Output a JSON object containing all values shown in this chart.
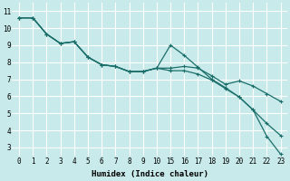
{
  "xlabel": "Humidex (Indice chaleur)",
  "bg_color": "#c8eaea",
  "grid_color": "#ffffff",
  "line_color": "#1a6e6a",
  "line1_y": [
    10.6,
    10.6,
    9.65,
    9.1,
    9.2,
    8.3,
    7.85,
    7.75,
    7.45,
    7.45,
    7.65,
    7.65,
    7.75,
    7.65,
    7.2,
    6.7,
    6.9,
    6.6,
    6.15,
    5.7
  ],
  "line2_y": [
    10.6,
    10.6,
    9.65,
    9.1,
    9.2,
    8.3,
    7.85,
    7.75,
    7.45,
    7.45,
    7.65,
    9.0,
    8.4,
    7.7,
    7.0,
    6.5,
    5.95,
    5.2,
    4.4,
    3.7
  ],
  "line3_y": [
    10.6,
    10.6,
    9.65,
    9.1,
    9.2,
    8.3,
    7.85,
    7.75,
    7.45,
    7.45,
    7.65,
    7.5,
    7.5,
    7.3,
    6.95,
    6.45,
    5.95,
    5.2,
    3.65,
    2.6
  ],
  "xtick_labels": [
    "0",
    "1",
    "2",
    "3",
    "4",
    "5",
    "6",
    "7",
    "8",
    "9",
    "10",
    "15",
    "16",
    "17",
    "18",
    "19",
    "20",
    "21",
    "22",
    "23"
  ],
  "ylim": [
    2.5,
    11.5
  ],
  "yticks": [
    3,
    4,
    5,
    6,
    7,
    8,
    9,
    10,
    11
  ],
  "xlim": [
    -0.5,
    19.5
  ]
}
